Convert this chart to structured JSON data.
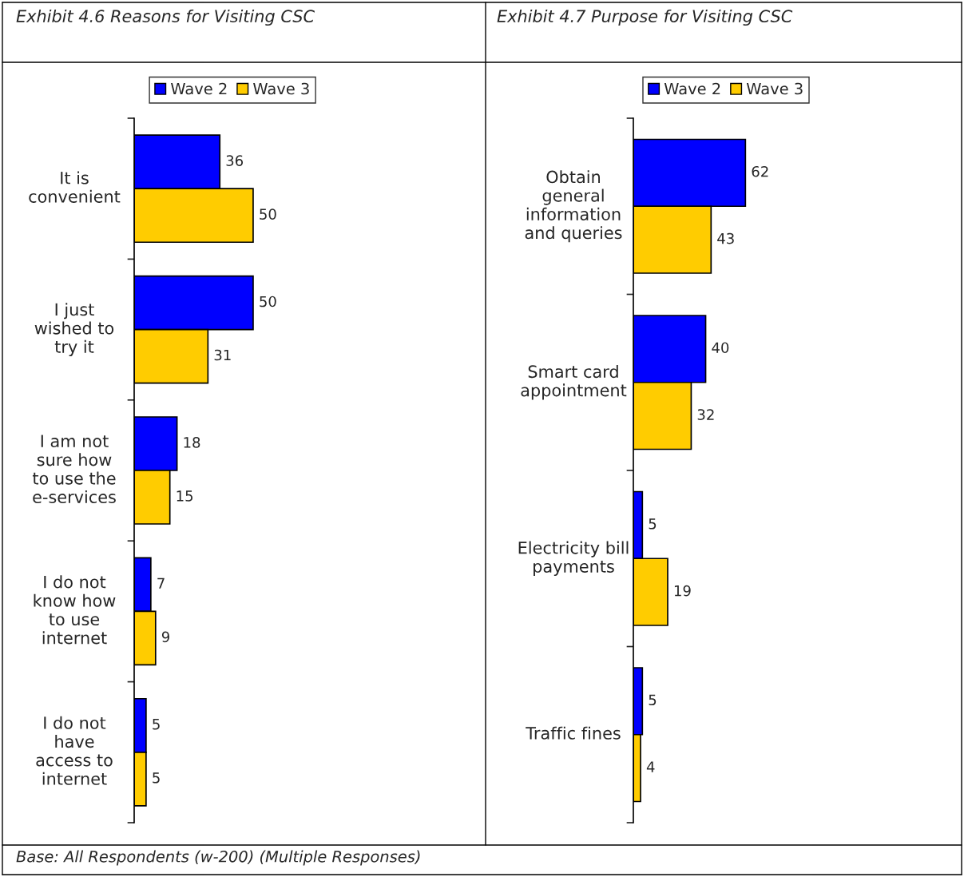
{
  "chart_data": [
    {
      "type": "bar",
      "orientation": "horizontal",
      "title": "Exhibit 4.6 Reasons for Visiting CSC",
      "categories": [
        "It is\nconvenient",
        "I just\nwished to\ntry it",
        "I am not\nsure how\nto use the\ne-services",
        "I do not\nknow how\nto use\ninternet",
        "I do not\nhave\naccess to\ninternet"
      ],
      "series": [
        {
          "name": "Wave 2",
          "color": "#0000ff",
          "values": [
            36,
            50,
            18,
            7,
            5
          ]
        },
        {
          "name": "Wave 3",
          "color": "#ffcc00",
          "values": [
            50,
            31,
            15,
            9,
            5
          ]
        }
      ],
      "data_labels": true,
      "legend": "top",
      "grid": false,
      "annotations": [
        "Base: All Respondents (w-200) (Multiple Responses)"
      ]
    },
    {
      "type": "bar",
      "orientation": "horizontal",
      "title": "Exhibit 4.7 Purpose for Visiting CSC",
      "categories": [
        "Obtain\ngeneral\ninformation\nand queries",
        "Smart card\nappointment",
        "Electricity bill\npayments",
        "Traffic fines"
      ],
      "series": [
        {
          "name": "Wave 2",
          "color": "#0000ff",
          "values": [
            62,
            40,
            5,
            5
          ]
        },
        {
          "name": "Wave 3",
          "color": "#ffcc00",
          "values": [
            43,
            32,
            19,
            4
          ]
        }
      ],
      "data_labels": true,
      "legend": "top",
      "grid": false
    }
  ]
}
